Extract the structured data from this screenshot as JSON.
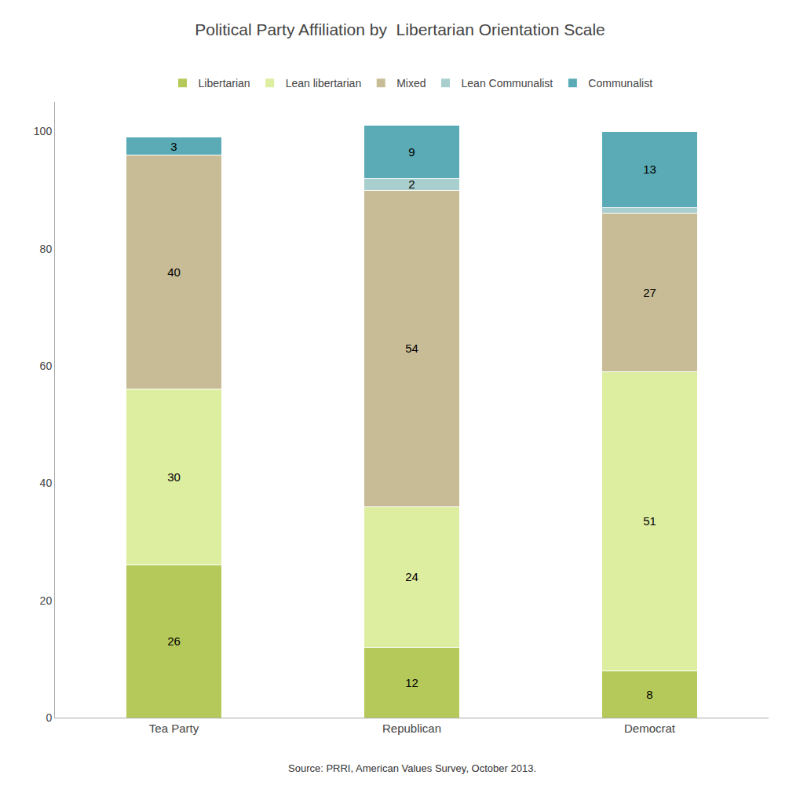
{
  "chart_data": {
    "type": "bar",
    "stacked": true,
    "title": "Political Party Affiliation by  Libertarian Orientation Scale",
    "categories": [
      "Tea Party",
      "Republican",
      "Democrat"
    ],
    "series": [
      {
        "name": "Libertarian",
        "color": "#b5c95a",
        "values": [
          26,
          12,
          8
        ]
      },
      {
        "name": "Lean libertarian",
        "color": "#deeea0",
        "values": [
          30,
          24,
          51
        ]
      },
      {
        "name": "Mixed",
        "color": "#c8bc96",
        "values": [
          40,
          54,
          27
        ]
      },
      {
        "name": "Lean Communalist",
        "color": "#a8cece",
        "values": [
          0,
          2,
          1
        ],
        "value_labels": [
          null,
          "2",
          null
        ]
      },
      {
        "name": "Communalist",
        "color": "#5aabb5",
        "values": [
          3,
          9,
          13
        ]
      }
    ],
    "ylim": [
      0,
      105
    ],
    "yticks": [
      0,
      20,
      40,
      60,
      80,
      100
    ],
    "grid": false,
    "legend": "top",
    "data_labels": true,
    "annotations": [
      "Source: PRRI, American Values Survey, October 2013."
    ]
  }
}
